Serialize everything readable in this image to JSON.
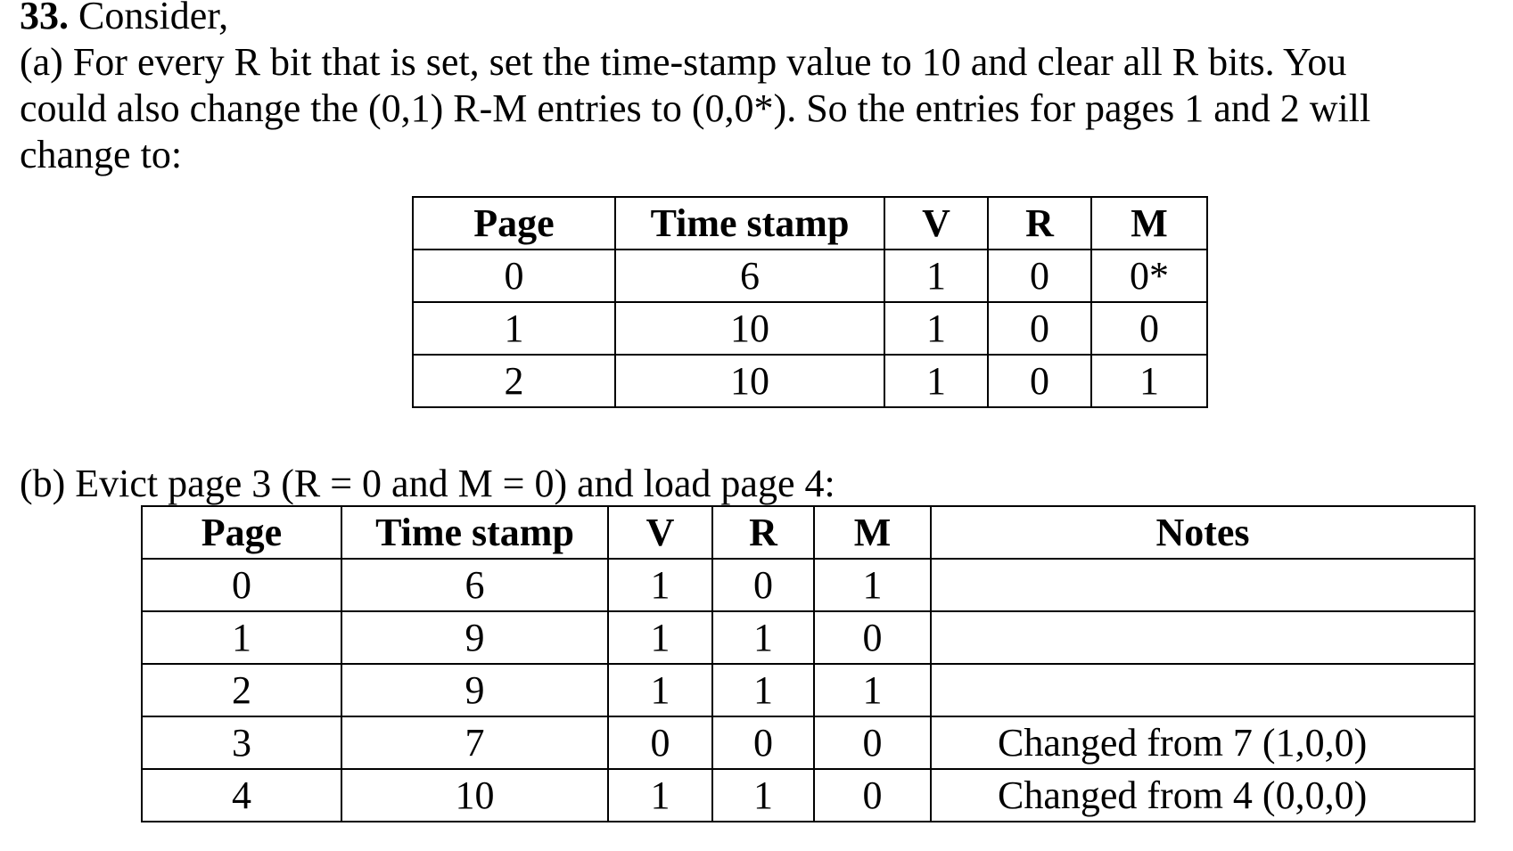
{
  "question": {
    "number": "33.",
    "intro": " Consider,",
    "part_a_lines": [
      "(a) For every R bit that is set, set the time-stamp value to 10 and clear all R  bits. You",
      "could also change the (0,1) R-M entries to (0,0*). So the entries for pages 1 and 2 will",
      "change to:"
    ],
    "part_b_text": "(b) Evict page 3 (R = 0 and M = 0) and load page 4:"
  },
  "table_a": {
    "headers": [
      "Page",
      "Time stamp",
      "V",
      "R",
      "M"
    ],
    "rows": [
      [
        "0",
        "6",
        "1",
        "0",
        "0*"
      ],
      [
        "1",
        "10",
        "1",
        "0",
        "0"
      ],
      [
        "2",
        "10",
        "1",
        "0",
        "1"
      ]
    ]
  },
  "table_b": {
    "headers": [
      "Page",
      "Time stamp",
      "V",
      "R",
      "M",
      "Notes"
    ],
    "rows": [
      [
        "0",
        "6",
        "1",
        "0",
        "1",
        ""
      ],
      [
        "1",
        "9",
        "1",
        "1",
        "0",
        ""
      ],
      [
        "2",
        "9",
        "1",
        "1",
        "1",
        ""
      ],
      [
        "3",
        "7",
        "0",
        "0",
        "0",
        "Changed from 7 (1,0,0)"
      ],
      [
        "4",
        "10",
        "1",
        "1",
        "0",
        "Changed from 4 (0,0,0)"
      ]
    ]
  }
}
